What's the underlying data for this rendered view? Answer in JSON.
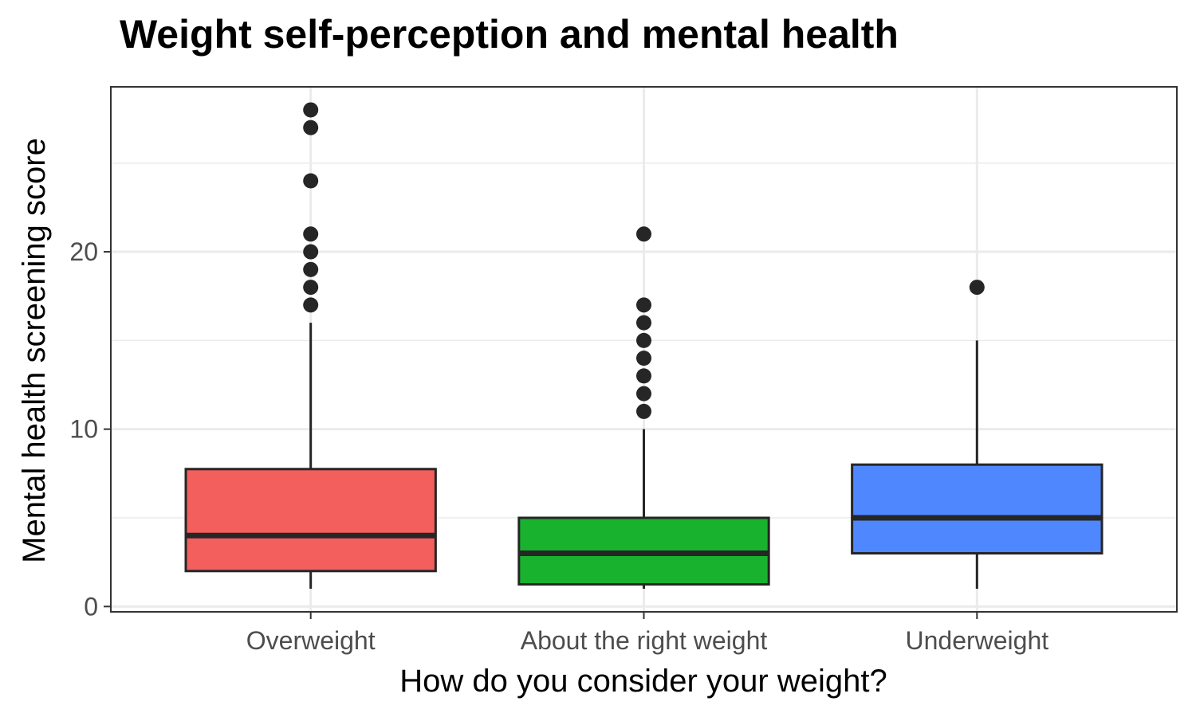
{
  "chart_data": {
    "type": "boxplot",
    "title": "Weight self-perception and mental health",
    "xlabel": "How do you consider your weight?",
    "ylabel": "Mental health screening score",
    "categories": [
      "Overweight",
      "About the right weight",
      "Underweight"
    ],
    "ylim": [
      -0.3,
      29.3
    ],
    "yticks": [
      0,
      10,
      20
    ],
    "grid": true,
    "legend": "none",
    "boxes": [
      {
        "category": "Overweight",
        "fill": "#F25F5C",
        "lower_whisker": 1,
        "q1": 2,
        "median": 4,
        "q3": 7.75,
        "upper_whisker": 16,
        "outliers": [
          17,
          18,
          19,
          20,
          21,
          24,
          27,
          28
        ]
      },
      {
        "category": "About the right weight",
        "fill": "#19B22E",
        "lower_whisker": 1,
        "q1": 1.25,
        "median": 3,
        "q3": 5,
        "upper_whisker": 10,
        "outliers": [
          11,
          12,
          13,
          14,
          15,
          16,
          17,
          21
        ]
      },
      {
        "category": "Underweight",
        "fill": "#4F87FF",
        "lower_whisker": 1,
        "q1": 3,
        "median": 5,
        "q3": 8,
        "upper_whisker": 15,
        "outliers": [
          18
        ]
      }
    ]
  }
}
